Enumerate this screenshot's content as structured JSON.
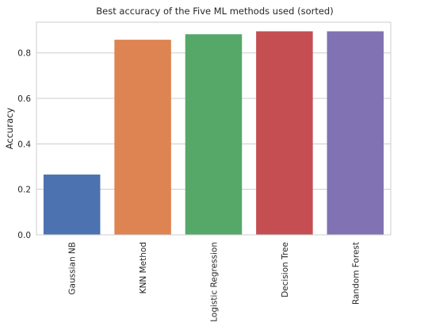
{
  "chart_data": {
    "type": "bar",
    "title": "Best accuracy of the Five ML methods used (sorted)",
    "xlabel": "",
    "ylabel": "Accuracy",
    "ylim": [
      0,
      0.935
    ],
    "yticks": [
      "0.0",
      "0.2",
      "0.4",
      "0.6",
      "0.8"
    ],
    "ytick_values": [
      0.0,
      0.2,
      0.4,
      0.6,
      0.8
    ],
    "categories": [
      "Gaussian NB",
      "KNN Method",
      "Logistic Regression",
      "Decision Tree",
      "Random Forest"
    ],
    "values": [
      0.265,
      0.858,
      0.882,
      0.895,
      0.895
    ],
    "colors": [
      "#4c72b0",
      "#dd8452",
      "#55a868",
      "#c44e52",
      "#8172b3"
    ],
    "grid": true,
    "legend": "none"
  }
}
